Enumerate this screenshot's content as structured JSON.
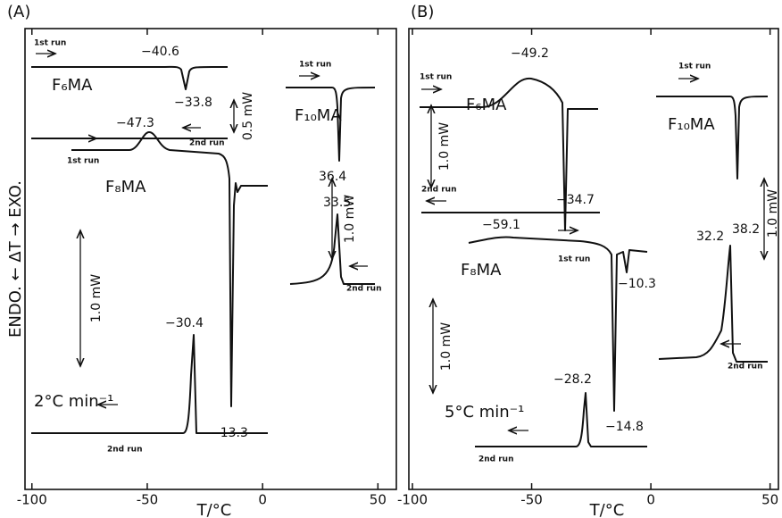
{
  "figure": {
    "y_label": "ENDO. ← ΔT → EXO.",
    "panels": [
      {
        "label": "(A)",
        "x_label": "T/°C",
        "xlim": [
          -103,
          58
        ],
        "xticks": [
          -100,
          -50,
          0,
          50
        ],
        "annotations": [
          "1st run",
          "−40.6",
          "F₆MA",
          "−33.8",
          "0.5 mW",
          "2nd run",
          "1st run",
          "F₁₀MA",
          "−47.3",
          "1st run",
          "F₈MA",
          "36.4",
          "1.0 mW",
          "33.5",
          "2nd run",
          "1.0 mW",
          "−30.4",
          "2°C min⁻¹",
          "−13.3",
          "2nd run"
        ]
      },
      {
        "label": "(B)",
        "x_label": "T/°C",
        "xlim": [
          -101.5,
          53.5
        ],
        "xticks": [
          -100,
          -50,
          0,
          50
        ],
        "annotations": [
          "1st run",
          "−49.2",
          "F₆MA",
          "1.0 mW",
          "2nd run",
          "−34.7",
          "1st run",
          "F₁₀MA",
          "−59.1",
          "1st run",
          "F₈MA",
          "−10.3",
          "38.2",
          "32.2",
          "1.0 mW",
          "2nd run",
          "−28.2",
          "5°C min⁻¹",
          "−14.8",
          "2nd run",
          "1.0 mW"
        ]
      }
    ]
  }
}
